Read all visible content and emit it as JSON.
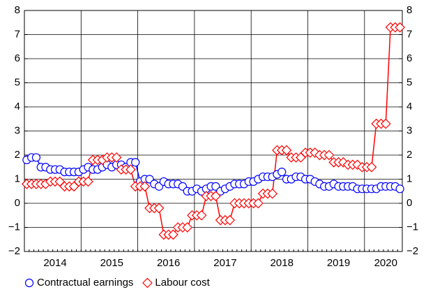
{
  "chart_data": {
    "type": "line",
    "categories": [
      null,
      null,
      null,
      null,
      null,
      null,
      "2014",
      null,
      null,
      null,
      null,
      null,
      null,
      null,
      null,
      null,
      null,
      null,
      "2015",
      null,
      null,
      null,
      null,
      null,
      null,
      null,
      null,
      null,
      null,
      null,
      "2016",
      null,
      null,
      null,
      null,
      null,
      null,
      null,
      null,
      null,
      null,
      null,
      "2017",
      null,
      null,
      null,
      null,
      null,
      null,
      null,
      null,
      null,
      null,
      null,
      "2018",
      null,
      null,
      null,
      null,
      null,
      null,
      null,
      null,
      null,
      null,
      null,
      "2019",
      null,
      null,
      null,
      null,
      null,
      null,
      null,
      null,
      null,
      "2020",
      null,
      null,
      null
    ],
    "series": [
      {
        "name": "Contractual earnings",
        "color": "#0000ff",
        "marker": "circle",
        "values": [
          1.8,
          1.9,
          1.9,
          1.5,
          1.5,
          1.4,
          1.4,
          1.4,
          1.3,
          1.3,
          1.3,
          1.3,
          1.4,
          1.5,
          1.4,
          1.4,
          1.5,
          1.6,
          1.5,
          1.6,
          1.6,
          1.5,
          1.7,
          1.7,
          0.9,
          1.0,
          1.0,
          0.8,
          0.7,
          0.9,
          0.8,
          0.8,
          0.8,
          0.7,
          0.5,
          0.5,
          0.6,
          0.5,
          0.6,
          0.7,
          0.7,
          0.5,
          0.6,
          0.7,
          0.8,
          0.8,
          0.8,
          0.9,
          0.9,
          1.0,
          1.1,
          1.1,
          1.1,
          1.2,
          1.3,
          1.0,
          1.0,
          1.1,
          1.1,
          1.0,
          1.0,
          0.9,
          0.8,
          0.7,
          0.7,
          0.8,
          0.7,
          0.7,
          0.7,
          0.7,
          0.6,
          0.6,
          0.6,
          0.6,
          0.6,
          0.7,
          0.7,
          0.7,
          0.7,
          0.6
        ]
      },
      {
        "name": "Labour cost",
        "color": "#ff0000",
        "marker": "diamond",
        "values": [
          0.8,
          0.8,
          0.8,
          0.8,
          0.8,
          0.9,
          0.9,
          0.9,
          0.7,
          0.7,
          0.7,
          0.9,
          0.9,
          0.9,
          1.8,
          1.8,
          1.8,
          1.9,
          1.9,
          1.9,
          1.4,
          1.4,
          1.4,
          0.7,
          0.7,
          0.7,
          -0.2,
          -0.2,
          -0.2,
          -1.3,
          -1.3,
          -1.3,
          -1.0,
          -1.0,
          -1.0,
          -0.5,
          -0.5,
          -0.5,
          0.3,
          0.3,
          0.3,
          -0.7,
          -0.7,
          -0.7,
          0,
          0,
          0,
          0,
          0,
          0,
          0.4,
          0.4,
          0.4,
          2.2,
          2.2,
          2.2,
          1.9,
          1.9,
          1.9,
          2.1,
          2.1,
          2.1,
          2.0,
          2.0,
          2.0,
          1.7,
          1.7,
          1.7,
          1.6,
          1.6,
          1.6,
          1.5,
          1.5,
          1.5,
          3.3,
          3.3,
          3.3,
          7.3,
          7.3,
          7.3
        ]
      }
    ],
    "ylim": [
      -2,
      8
    ],
    "yticks": [
      {
        "value": -2,
        "label": "−2"
      },
      {
        "value": -1,
        "label": "−1"
      },
      0,
      1,
      2,
      3,
      4,
      5,
      6,
      7,
      8
    ],
    "grid": true
  }
}
